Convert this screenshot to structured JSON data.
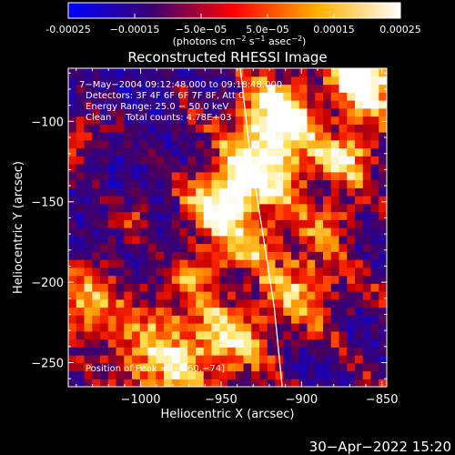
{
  "chart_data": {
    "type": "heatmap",
    "title": "Reconstructed RHESSI Image",
    "xlabel": "Heliocentric X (arcsec)",
    "ylabel": "Heliocentric Y (arcsec)",
    "xlim": [
      -1045,
      -847
    ],
    "ylim": [
      -265,
      -67
    ],
    "x_ticks": [
      -1000,
      -950,
      -900,
      -850
    ],
    "x_tick_labels": [
      "−1000",
      "−950",
      "−900",
      "−850"
    ],
    "y_ticks": [
      -100,
      -150,
      -200,
      -250
    ],
    "y_tick_labels": [
      "−100",
      "−150",
      "−200",
      "−250"
    ],
    "colorbar": {
      "min": -0.00025,
      "max": 0.00025,
      "ticks": [
        -0.00025,
        -0.00015,
        -5e-05,
        5e-05,
        0.00015,
        0.00025
      ],
      "tick_labels": [
        "-0.00025",
        "−0.00015",
        "−5.0e−05",
        "5.0e−05",
        "0.00015",
        "0.00025"
      ],
      "colors": [
        "#0000ff",
        "#3a0070",
        "#ff0000",
        "#ffb000",
        "#ffffff"
      ],
      "unit_parts": [
        "(photons cm",
        "−2",
        " s",
        "−1",
        " asec",
        "−2",
        ")"
      ]
    },
    "annotations": [
      "7−May−2004 09:12:48.000  to 09:18:48.000",
      "Detectors: 3F 4F 6F 6F 7F 8F, Att 0",
      "Energy Range: 25.0 − 50.0 keV",
      "Clean     Total counts: 4.78E+03"
    ],
    "peak_label": "Position of Peak = [−860,−74]",
    "limb": [
      [
        -938,
        -67
      ],
      [
        -932,
        -120
      ],
      [
        -924,
        -170
      ],
      [
        -917,
        -215
      ],
      [
        -912,
        -265
      ]
    ]
  },
  "footer": {
    "timestamp": "30−Apr−2022 15:20"
  }
}
